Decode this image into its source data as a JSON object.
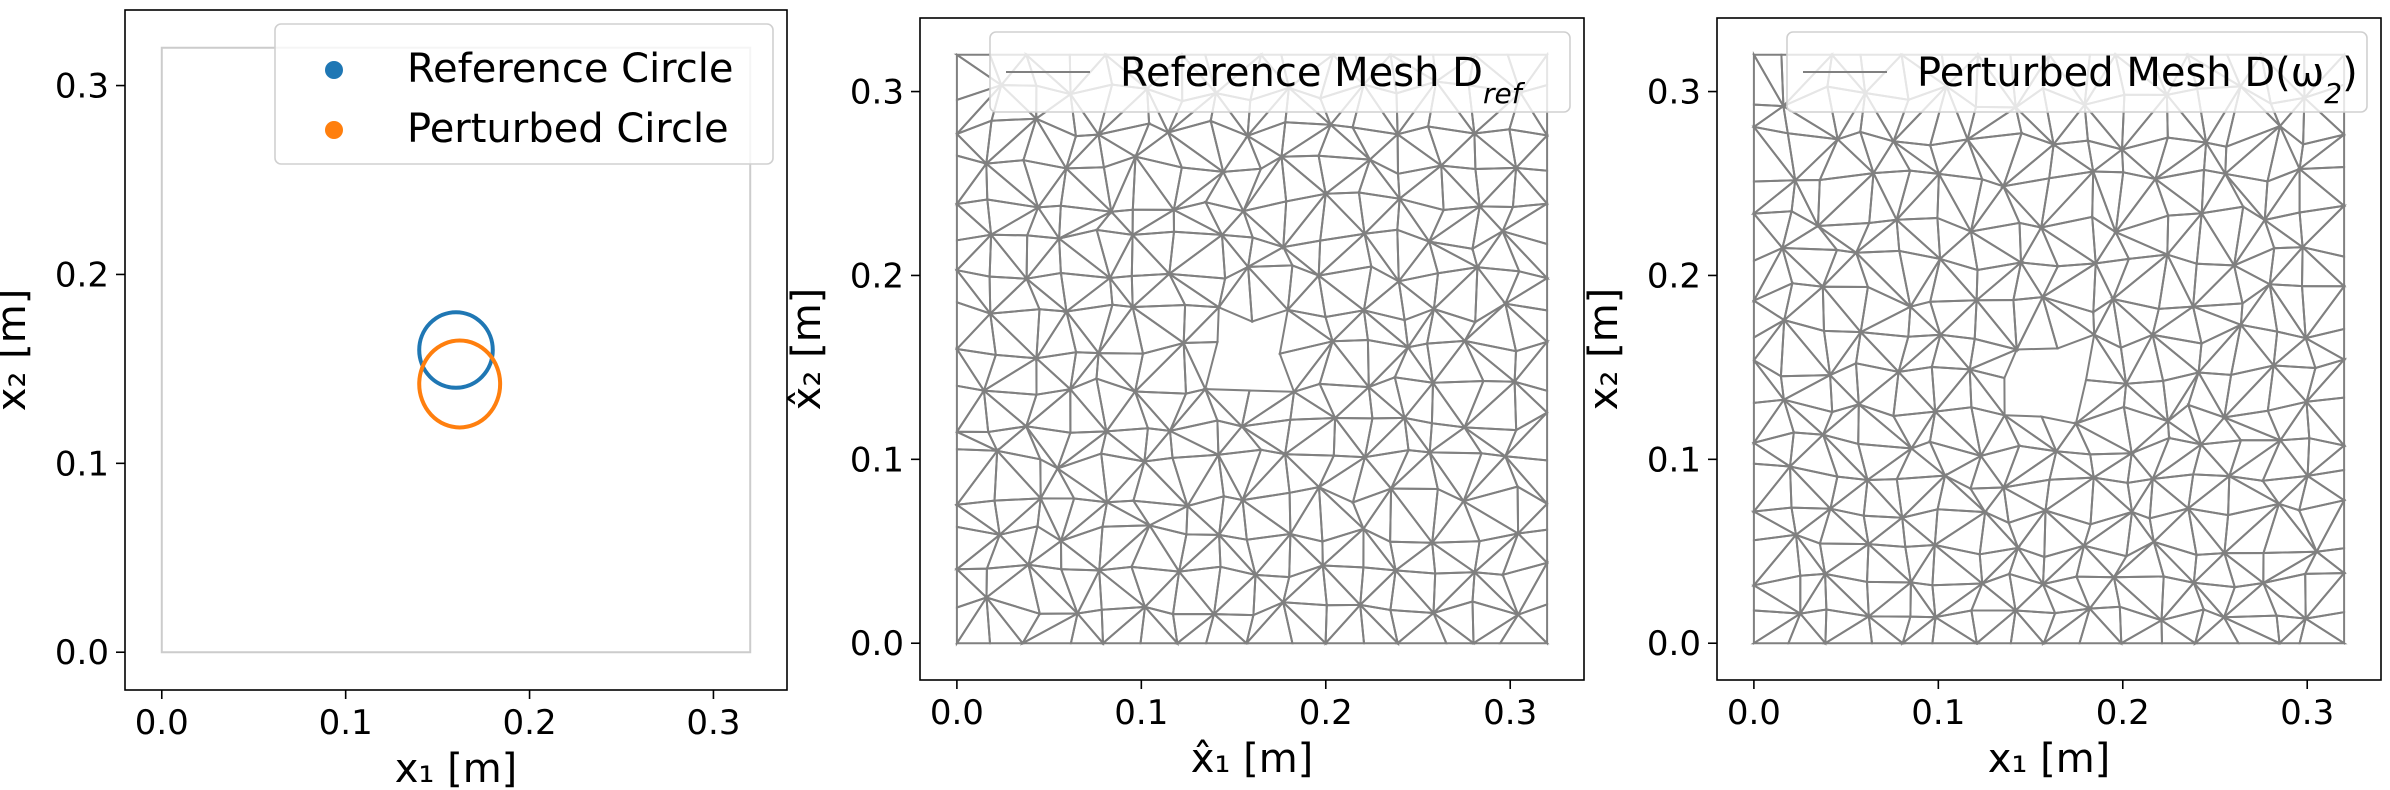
{
  "chart_data": [
    {
      "type": "scatter",
      "title": "",
      "xlabel": "x₁ [m]",
      "ylabel": "x₂ [m]",
      "xlim": [
        -0.02,
        0.34
      ],
      "ylim": [
        -0.02,
        0.34
      ],
      "xticks": [
        "0.0",
        "0.1",
        "0.2",
        "0.3"
      ],
      "yticks": [
        "0.0",
        "0.1",
        "0.2",
        "0.3"
      ],
      "domain_boundary": [
        [
          0,
          0
        ],
        [
          0.32,
          0
        ],
        [
          0.32,
          0.32
        ],
        [
          0,
          0.32
        ]
      ],
      "domain_color": "#cccccc",
      "legend_position": "upper right",
      "series": [
        {
          "name": "Reference Circle",
          "color": "#1f77b4",
          "shape": "circle",
          "center": [
            0.16,
            0.16
          ],
          "radius": 0.02
        },
        {
          "name": "Perturbed Circle",
          "color": "#ff7f0e",
          "shape": "ellipse",
          "center": [
            0.162,
            0.142
          ],
          "radius_x": 0.022,
          "radius_y": 0.023
        }
      ]
    },
    {
      "type": "mesh",
      "title": "",
      "xlabel": "x̂₁ [m]",
      "ylabel": "x̂₂ [m]",
      "xlim": [
        -0.02,
        0.34
      ],
      "ylim": [
        -0.02,
        0.34
      ],
      "xticks": [
        "0.0",
        "0.1",
        "0.2",
        "0.3"
      ],
      "yticks": [
        "0.0",
        "0.1",
        "0.2",
        "0.3"
      ],
      "legend_position": "upper right",
      "series": [
        {
          "name": "Reference Mesh D",
          "subscript": "ref",
          "color": "#808080"
        }
      ],
      "domain": [
        0,
        0.32
      ],
      "hole": {
        "center": [
          0.16,
          0.16
        ],
        "radius": 0.02
      }
    },
    {
      "type": "mesh",
      "title": "",
      "xlabel": "x₁ [m]",
      "ylabel": "x₂ [m]",
      "xlim": [
        -0.02,
        0.34
      ],
      "ylim": [
        -0.02,
        0.34
      ],
      "xticks": [
        "0.0",
        "0.1",
        "0.2",
        "0.3"
      ],
      "yticks": [
        "0.0",
        "0.1",
        "0.2",
        "0.3"
      ],
      "legend_position": "upper right",
      "series": [
        {
          "name": "Perturbed Mesh D(ω",
          "subscript": "2",
          "suffix": ")",
          "color": "#808080"
        }
      ],
      "domain": [
        0,
        0.32
      ],
      "hole": {
        "center": [
          0.162,
          0.142
        ],
        "radius": 0.022
      }
    }
  ]
}
